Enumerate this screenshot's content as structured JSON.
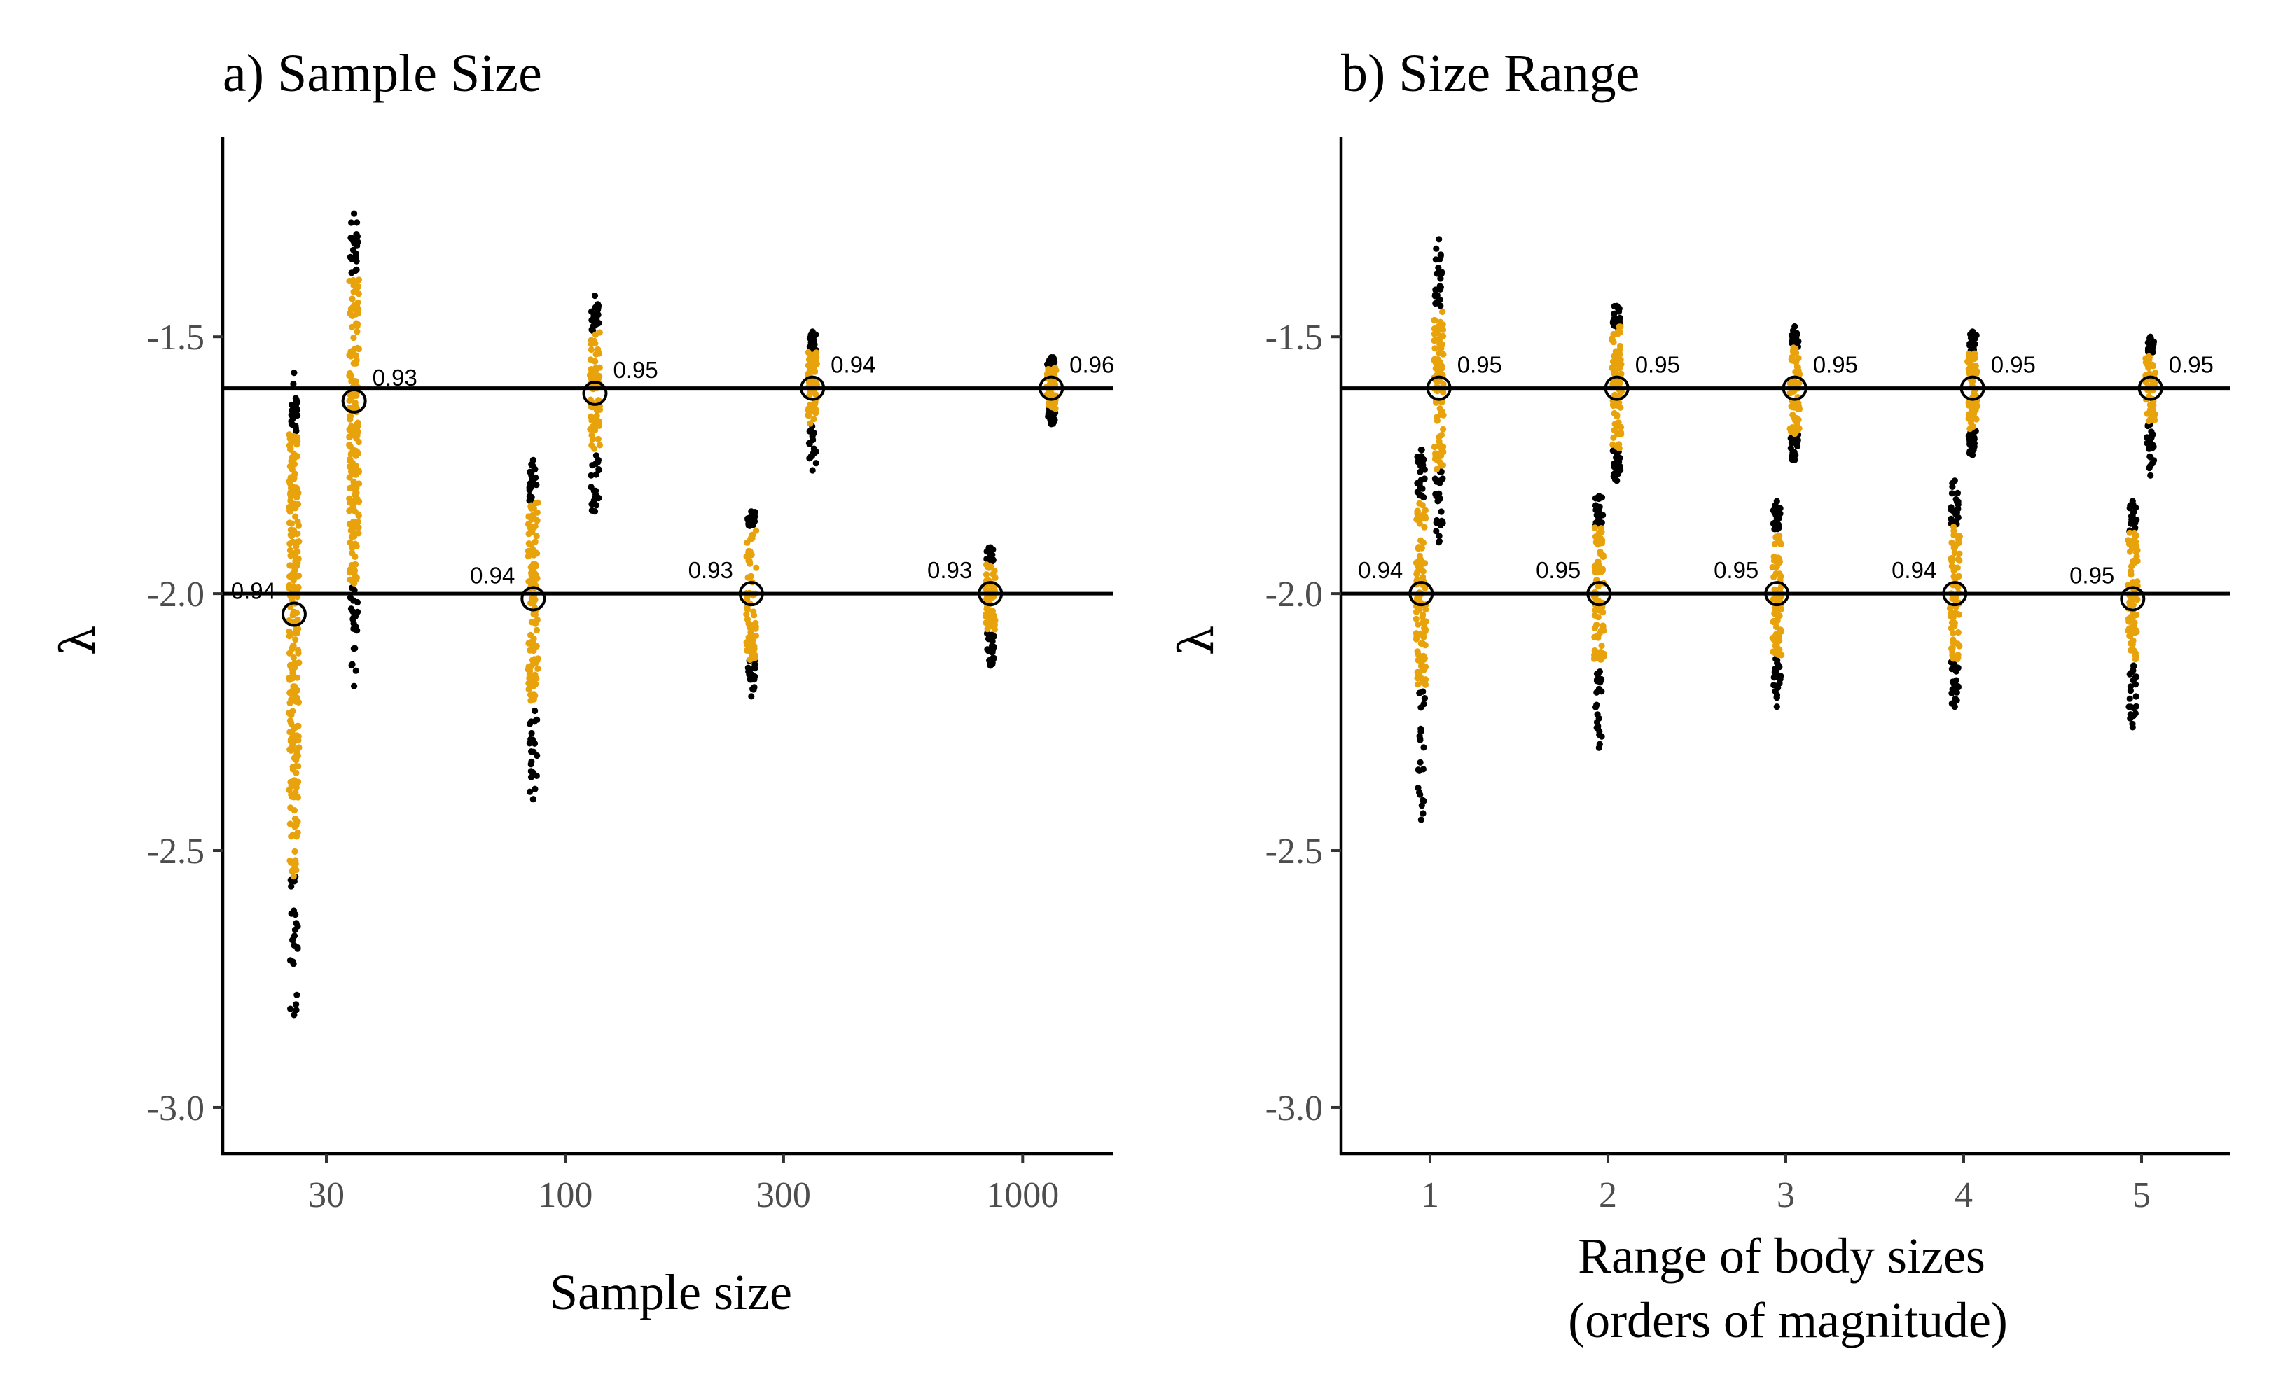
{
  "chart_data": [
    {
      "type": "scatter",
      "title": "a) Sample Size",
      "xlabel": "Sample size",
      "ylabel": "λ",
      "x_scale": "log10",
      "xlim": [
        17.8,
        1580
      ],
      "ylim": [
        -3.09,
        -1.11
      ],
      "xticks": [
        30,
        100,
        300,
        1000
      ],
      "xtick_labels": [
        "30",
        "100",
        "300",
        "1000"
      ],
      "yticks": [
        -3.0,
        -2.5,
        -2.0,
        -1.5
      ],
      "ytick_labels": [
        "-3.0",
        "-2.5",
        "-2.0",
        "-1.5"
      ],
      "grid": false,
      "legend": "none",
      "colors": {
        "inside": "#E8A20C",
        "outside": "#000000",
        "reference": "#000000"
      },
      "reference_lines": [
        -1.6,
        -2.0
      ],
      "groups": [
        {
          "x": 25.5,
          "true_lambda": -2.0,
          "estimate": -2.04,
          "coverage": "0.94",
          "inner": [
            -2.55,
            -1.69
          ],
          "outer": [
            -2.82,
            -1.57
          ]
        },
        {
          "x": 34.5,
          "true_lambda": -1.6,
          "estimate": -1.625,
          "coverage": "0.93",
          "inner": [
            -1.98,
            -1.38
          ],
          "outer": [
            -2.18,
            -1.26
          ]
        },
        {
          "x": 85,
          "true_lambda": -2.0,
          "estimate": -2.01,
          "coverage": "0.94",
          "inner": [
            -2.22,
            -1.82
          ],
          "outer": [
            -2.4,
            -1.74
          ]
        },
        {
          "x": 116,
          "true_lambda": -1.6,
          "estimate": -1.61,
          "coverage": "0.95",
          "inner": [
            -1.72,
            -1.49
          ],
          "outer": [
            -1.84,
            -1.42
          ]
        },
        {
          "x": 255,
          "true_lambda": -2.0,
          "estimate": -2.0,
          "coverage": "0.93",
          "inner": [
            -2.13,
            -1.87
          ],
          "outer": [
            -2.2,
            -1.84
          ]
        },
        {
          "x": 347,
          "true_lambda": -1.6,
          "estimate": -1.6,
          "coverage": "0.94",
          "inner": [
            -1.67,
            -1.53
          ],
          "outer": [
            -1.76,
            -1.49
          ]
        },
        {
          "x": 850,
          "true_lambda": -2.0,
          "estimate": -2.0,
          "coverage": "0.93",
          "inner": [
            -2.07,
            -1.94
          ],
          "outer": [
            -2.14,
            -1.91
          ]
        },
        {
          "x": 1155,
          "true_lambda": -1.6,
          "estimate": -1.6,
          "coverage": "0.96",
          "inner": [
            -1.64,
            -1.56
          ],
          "outer": [
            -1.67,
            -1.54
          ]
        }
      ]
    },
    {
      "type": "scatter",
      "title": "b) Size Range",
      "xlabel": "Range of body sizes\n(orders of magnitude)",
      "ylabel": "λ",
      "x_scale": "linear",
      "xlim": [
        0.5,
        5.5
      ],
      "ylim": [
        -3.09,
        -1.11
      ],
      "xticks": [
        1,
        2,
        3,
        4,
        5
      ],
      "xtick_labels": [
        "1",
        "2",
        "3",
        "4",
        "5"
      ],
      "yticks": [
        -3.0,
        -2.5,
        -2.0,
        -1.5
      ],
      "ytick_labels": [
        "-3.0",
        "-2.5",
        "-2.0",
        "-1.5"
      ],
      "grid": false,
      "legend": "none",
      "colors": {
        "inside": "#E8A20C",
        "outside": "#000000",
        "reference": "#000000"
      },
      "reference_lines": [
        -1.6,
        -2.0
      ],
      "groups": [
        {
          "x": 0.95,
          "true_lambda": -2.0,
          "estimate": -2.0,
          "coverage": "0.94",
          "inner": [
            -2.18,
            -1.82
          ],
          "outer": [
            -2.44,
            -1.72
          ]
        },
        {
          "x": 1.05,
          "true_lambda": -1.6,
          "estimate": -1.6,
          "coverage": "0.95",
          "inner": [
            -1.76,
            -1.45
          ],
          "outer": [
            -1.9,
            -1.31
          ]
        },
        {
          "x": 1.95,
          "true_lambda": -2.0,
          "estimate": -2.0,
          "coverage": "0.95",
          "inner": [
            -2.14,
            -1.87
          ],
          "outer": [
            -2.3,
            -1.81
          ]
        },
        {
          "x": 2.05,
          "true_lambda": -1.6,
          "estimate": -1.6,
          "coverage": "0.95",
          "inner": [
            -1.72,
            -1.48
          ],
          "outer": [
            -1.78,
            -1.44
          ]
        },
        {
          "x": 2.95,
          "true_lambda": -2.0,
          "estimate": -2.0,
          "coverage": "0.95",
          "inner": [
            -2.12,
            -1.88
          ],
          "outer": [
            -2.22,
            -1.82
          ]
        },
        {
          "x": 3.05,
          "true_lambda": -1.6,
          "estimate": -1.6,
          "coverage": "0.95",
          "inner": [
            -1.69,
            -1.52
          ],
          "outer": [
            -1.74,
            -1.48
          ]
        },
        {
          "x": 3.95,
          "true_lambda": -2.0,
          "estimate": -2.0,
          "coverage": "0.94",
          "inner": [
            -2.13,
            -1.87
          ],
          "outer": [
            -2.22,
            -1.78
          ]
        },
        {
          "x": 4.05,
          "true_lambda": -1.6,
          "estimate": -1.6,
          "coverage": "0.95",
          "inner": [
            -1.68,
            -1.53
          ],
          "outer": [
            -1.73,
            -1.49
          ]
        },
        {
          "x": 4.95,
          "true_lambda": -2.0,
          "estimate": -2.01,
          "coverage": "0.95",
          "inner": [
            -2.14,
            -1.88
          ],
          "outer": [
            -2.26,
            -1.82
          ]
        },
        {
          "x": 5.05,
          "true_lambda": -1.6,
          "estimate": -1.6,
          "coverage": "0.95",
          "inner": [
            -1.67,
            -1.53
          ],
          "outer": [
            -1.77,
            -1.5
          ]
        }
      ]
    }
  ]
}
